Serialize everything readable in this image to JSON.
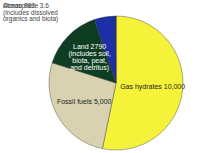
{
  "chart_data": {
    "type": "pie",
    "categories": [
      "Gas hydrates",
      "Fossil fuels",
      "Land",
      "Ocean",
      "Atmosphere"
    ],
    "values": [
      10000,
      5000,
      2790,
      983,
      3.6
    ],
    "value_labels": [
      "10,000",
      "5,000",
      "2790",
      "983",
      "3.6"
    ],
    "annotations": [
      null,
      null,
      "(includes soil, biota, peat, and detritus)",
      "(includes dissolved organics and biota)",
      null
    ],
    "colors": [
      "#f5f23a",
      "#d9d2b0",
      "#0f3d22",
      "#1d2fa6",
      "#111111"
    ],
    "data_labels": true
  }
}
